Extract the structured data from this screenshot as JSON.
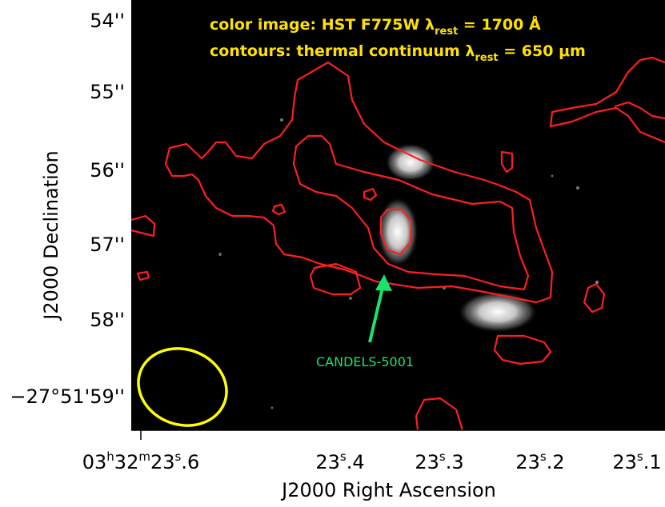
{
  "chart_data": {
    "type": "image",
    "title": "",
    "xlabel": "J2000 Right Ascension",
    "ylabel": "J2000 Declination",
    "x_ticks": [
      {
        "sup_units": [
          "h",
          "m",
          "s"
        ],
        "parts": [
          "03",
          "32",
          "23",
          ".6"
        ]
      },
      {
        "sup_units": [
          "s"
        ],
        "parts": [
          "23",
          ".4"
        ]
      },
      {
        "sup_units": [
          "s"
        ],
        "parts": [
          "23",
          ".3"
        ]
      },
      {
        "sup_units": [
          "s"
        ],
        "parts": [
          "23",
          ".2"
        ]
      },
      {
        "sup_units": [
          "s"
        ],
        "parts": [
          "23",
          ".1"
        ]
      }
    ],
    "x_tick_values_s": [
      23.6,
      23.4,
      23.3,
      23.2,
      23.1
    ],
    "y_ticks": [
      "54''",
      "55''",
      "56''",
      "57''",
      "58''",
      "−27°51'59''"
    ],
    "y_tick_values_arcsec": [
      54,
      55,
      56,
      57,
      58,
      59
    ],
    "annotations": {
      "line1_prefix": "color image: HST F775W λ",
      "line1_sub": "rest",
      "line1_suffix": " = 1700 Å",
      "line2_prefix": "contours: thermal continuum λ",
      "line2_sub": "rest",
      "line2_suffix": " = 650 μm"
    },
    "source_label": "CANDELS-5001",
    "colors": {
      "background": "#000000",
      "contour": "#ff1e1e",
      "annotation": "#ffe100",
      "arrow": "#19e36a",
      "beam": "#ffff00"
    }
  }
}
